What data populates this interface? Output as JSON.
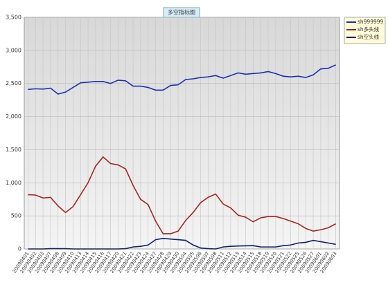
{
  "chart_data": {
    "type": "line",
    "title": "多空指标图",
    "categories": [
      "20090401",
      "20090402",
      "20090403",
      "20090407",
      "20090408",
      "20090409",
      "20090410",
      "20090413",
      "20090414",
      "20090415",
      "20090416",
      "20090417",
      "20090420",
      "20090421",
      "20090422",
      "20090423",
      "20090424",
      "20090427",
      "20090428",
      "20090429",
      "20090430",
      "20090504",
      "20090505",
      "20090506",
      "20090507",
      "20090508",
      "20090511",
      "20090512",
      "20090513",
      "20090514",
      "20090515",
      "20090518",
      "20090519",
      "20090520",
      "20090521",
      "20090522",
      "20090525",
      "20090526",
      "20090527",
      "20090601",
      "20090602",
      "20090603"
    ],
    "series": [
      {
        "name": "sh999999",
        "color": "#1a2fb0",
        "values": [
          2410,
          2420,
          2415,
          2430,
          2340,
          2370,
          2440,
          2510,
          2520,
          2530,
          2530,
          2500,
          2550,
          2540,
          2460,
          2460,
          2440,
          2400,
          2400,
          2470,
          2480,
          2560,
          2570,
          2590,
          2600,
          2620,
          2580,
          2620,
          2660,
          2640,
          2650,
          2660,
          2680,
          2650,
          2610,
          2600,
          2610,
          2590,
          2630,
          2720,
          2730,
          2780
        ]
      },
      {
        "name": "sh多头线",
        "color": "#a32424",
        "values": [
          820,
          815,
          770,
          780,
          650,
          550,
          640,
          820,
          1000,
          1250,
          1390,
          1290,
          1270,
          1210,
          960,
          750,
          670,
          420,
          230,
          230,
          270,
          430,
          550,
          700,
          780,
          830,
          680,
          620,
          510,
          480,
          410,
          470,
          490,
          490,
          460,
          420,
          380,
          310,
          270,
          290,
          320,
          380
        ]
      },
      {
        "name": "sh空头线",
        "color": "#0a1f6e",
        "values": [
          0,
          0,
          0,
          5,
          5,
          5,
          0,
          0,
          0,
          0,
          0,
          0,
          0,
          5,
          30,
          40,
          60,
          140,
          160,
          150,
          140,
          130,
          60,
          15,
          5,
          0,
          30,
          40,
          45,
          48,
          50,
          30,
          30,
          30,
          50,
          60,
          90,
          100,
          130,
          110,
          90,
          70
        ]
      }
    ],
    "ylim": [
      0,
      3500
    ],
    "yticks": [
      0,
      500,
      {
        "value": 1000,
        "label": "1,000"
      },
      {
        "value": 1500,
        "label": "1,500"
      },
      {
        "value": 2000,
        "label": "2,000"
      },
      {
        "value": 2500,
        "label": "2,500"
      },
      {
        "value": 3000,
        "label": "3,000"
      },
      {
        "value": 3500,
        "label": "3,500"
      }
    ],
    "grid": true
  }
}
